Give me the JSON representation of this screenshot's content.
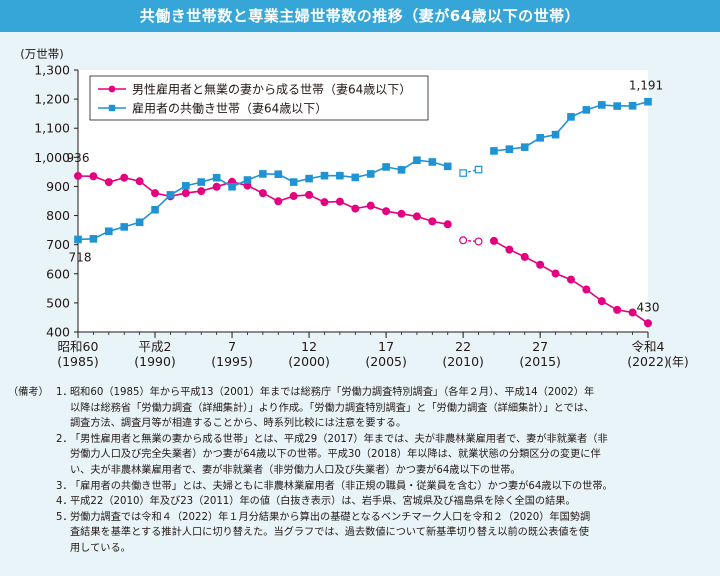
{
  "title": "共働き世帯数と専業主婦世帯数の推移（妻が64歳以下の世帯）",
  "colors": {
    "title_bg": "#36a5d8",
    "pink": "#e4007f",
    "blue": "#1f93d3",
    "page_bg": "#e9f4f9"
  },
  "chart_data": {
    "type": "line",
    "unit_label": "(万世帯)",
    "ylim": [
      400,
      1300
    ],
    "yticks": [
      400,
      500,
      600,
      700,
      800,
      900,
      1000,
      1100,
      1200,
      1300
    ],
    "ytick_labels": [
      "400",
      "500",
      "600",
      "700",
      "800",
      "900",
      "1,000",
      "1,100",
      "1,200",
      "1,300"
    ],
    "xlim": [
      1985,
      2022
    ],
    "x_ticks": [
      {
        "x": 1985,
        "line1": "昭和60",
        "line2": "(1985)"
      },
      {
        "x": 1990,
        "line1": "平成2",
        "line2": "(1990)"
      },
      {
        "x": 1995,
        "line1": "7",
        "line2": "(1995)"
      },
      {
        "x": 2000,
        "line1": "12",
        "line2": "(2000)"
      },
      {
        "x": 2005,
        "line1": "17",
        "line2": "(2005)"
      },
      {
        "x": 2010,
        "line1": "22",
        "line2": "(2010)"
      },
      {
        "x": 2015,
        "line1": "27",
        "line2": "(2015)"
      },
      {
        "x": 2022,
        "line1": "令和4",
        "line2": "(2022)"
      }
    ],
    "x_unit": "(年)",
    "series": [
      {
        "name": "男性雇用者と無業の妻から成る世帯（妻64歳以下）",
        "color": "#e4007f",
        "marker": "circle",
        "segments": [
          {
            "x": [
              1985,
              1986,
              1987,
              1988,
              1989,
              1990,
              1991,
              1992,
              1993,
              1994,
              1995,
              1996,
              1997,
              1998,
              1999,
              2000,
              2001,
              2002,
              2003,
              2004,
              2005,
              2006,
              2007,
              2008,
              2009
            ],
            "values": [
              936,
              935,
              915,
              930,
              918,
              877,
              866,
              877,
              884,
              899,
              916,
              903,
              877,
              849,
              867,
              871,
              846,
              848,
              824,
              834,
              815,
              806,
              797,
              780,
              770
            ]
          },
          {
            "x": [
              2010,
              2011
            ],
            "values": [
              715,
              711
            ],
            "dashed": true
          },
          {
            "x": [
              2012,
              2013,
              2014,
              2015,
              2016,
              2017,
              2018,
              2019,
              2020,
              2021,
              2022
            ],
            "values": [
              713,
              683,
              658,
              631,
              601,
              580,
              546,
              506,
              476,
              467,
              430
            ]
          }
        ]
      },
      {
        "name": "雇用者の共働き世帯（妻64歳以下）",
        "color": "#1f93d3",
        "marker": "square",
        "segments": [
          {
            "x": [
              1985,
              1986,
              1987,
              1988,
              1989,
              1990,
              1991,
              1992,
              1993,
              1994,
              1995,
              1996,
              1997,
              1998,
              1999,
              2000,
              2001,
              2002,
              2003,
              2004,
              2005,
              2006,
              2007,
              2008,
              2009
            ],
            "values": [
              718,
              720,
              746,
              761,
              777,
              820,
              871,
              902,
              915,
              930,
              899,
              922,
              943,
              942,
              915,
              927,
              937,
              937,
              931,
              943,
              967,
              957,
              990,
              984,
              969
            ]
          },
          {
            "x": [
              2010,
              2011
            ],
            "values": [
              946,
              958
            ],
            "dashed": true
          },
          {
            "x": [
              2012,
              2013,
              2014,
              2015,
              2016,
              2017,
              2018,
              2019,
              2020,
              2021,
              2022
            ],
            "values": [
              1022,
              1028,
              1035,
              1067,
              1078,
              1139,
              1163,
              1180,
              1176,
              1177,
              1191
            ]
          }
        ]
      }
    ],
    "annotations": [
      {
        "text": "936",
        "series": 0,
        "x": 1985
      },
      {
        "text": "718",
        "series": 1,
        "x": 1985
      },
      {
        "text": "1,191",
        "series": 1,
        "x": 2022
      },
      {
        "text": "430",
        "series": 0,
        "x": 2022
      }
    ],
    "legend_position": "top-left"
  },
  "notes": {
    "label": "（備考）",
    "items": [
      {
        "num": "1．",
        "lines": [
          "昭和60（1985）年から平成13（2001）年までは総務庁「労働力調査特別調査」（各年２月）、平成14（2002）年",
          "以降は総務省「労働力調査（詳細集計）」より作成。「労働力調査特別調査」と「労働力調査（詳細集計）」とでは、",
          "調査方法、調査月等が相違することから、時系列比較には注意を要する。"
        ]
      },
      {
        "num": "2．",
        "lines": [
          "「男性雇用者と無業の妻から成る世帯」とは、平成29（2017）年までは、夫が非農林業雇用者で、妻が非就業者（非",
          "労働力人口及び完全失業者）かつ妻が64歳以下の世帯。平成30（2018）年以降は、就業状態の分類区分の変更に伴",
          "い、夫が非農林業雇用者で、妻が非就業者（非労働力人口及び失業者）かつ妻が64歳以下の世帯。"
        ]
      },
      {
        "num": "3．",
        "lines": [
          "「雇用者の共働き世帯」とは、夫婦ともに非農林業雇用者（非正規の職員・従業員を含む）かつ妻が64歳以下の世帯。"
        ]
      },
      {
        "num": "4．",
        "lines": [
          "平成22（2010）年及び23（2011）年の値（白抜き表示）は、岩手県、宮城県及び福島県を除く全国の結果。"
        ]
      },
      {
        "num": "5．",
        "lines": [
          "労働力調査では令和４（2022）年１月分結果から算出の基礎となるベンチマーク人口を令和２（2020）年国勢調",
          "査結果を基準とする推計人口に切り替えた。当グラフでは、過去数値について新基準切り替え以前の既公表値を使",
          "用している。"
        ]
      }
    ]
  }
}
